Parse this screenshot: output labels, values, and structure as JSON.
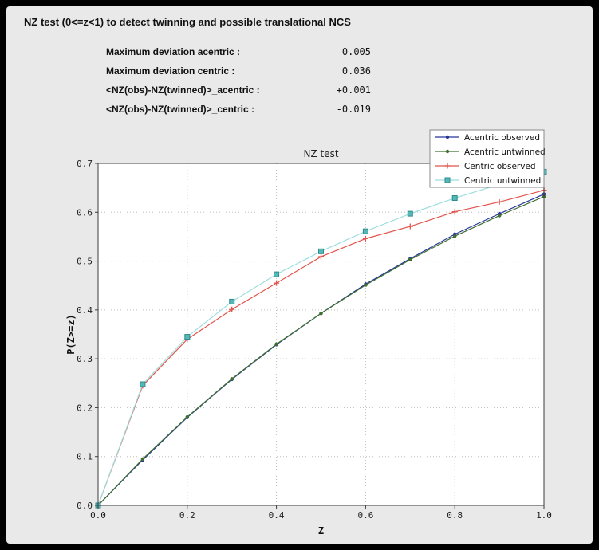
{
  "window": {
    "title": "NZ test (0<=z<1) to detect twinning and possible translational NCS"
  },
  "stats": [
    {
      "label": "Maximum deviation acentric :",
      "value": "0.005"
    },
    {
      "label": "Maximum deviation centric :",
      "value": "0.036"
    },
    {
      "label": "<NZ(obs)-NZ(twinned)>_acentric :",
      "value": "+0.001"
    },
    {
      "label": "<NZ(obs)-NZ(twinned)>_centric :",
      "value": "-0.019"
    }
  ],
  "chart_data": {
    "type": "line",
    "title": "NZ test",
    "xlabel": "Z",
    "ylabel": "P(Z>=z)",
    "xlim": [
      0.0,
      1.0
    ],
    "ylim": [
      0.0,
      0.7
    ],
    "x_ticks": [
      "0.0",
      "0.2",
      "0.4",
      "0.6",
      "0.8",
      "1.0"
    ],
    "y_ticks": [
      "0.0",
      "0.1",
      "0.2",
      "0.3",
      "0.4",
      "0.5",
      "0.6",
      "0.7"
    ],
    "grid": true,
    "legend_position": "upper right",
    "x": [
      0.0,
      0.1,
      0.2,
      0.3,
      0.4,
      0.5,
      0.6,
      0.7,
      0.8,
      0.9,
      1.0
    ],
    "series": [
      {
        "name": "Acentric observed",
        "color": "#27359b",
        "marker": "dot",
        "values": [
          0.0,
          0.093,
          0.18,
          0.258,
          0.329,
          0.393,
          0.453,
          0.505,
          0.555,
          0.597,
          0.637
        ]
      },
      {
        "name": "Acentric untwinned",
        "color": "#3f7030",
        "marker": "dot",
        "values": [
          0.0,
          0.095,
          0.181,
          0.259,
          0.33,
          0.393,
          0.451,
          0.503,
          0.551,
          0.593,
          0.632
        ]
      },
      {
        "name": "Centric observed",
        "color": "#e2544c",
        "marker": "plus",
        "values": [
          0.0,
          0.245,
          0.34,
          0.401,
          0.455,
          0.509,
          0.546,
          0.571,
          0.601,
          0.621,
          0.645
        ]
      },
      {
        "name": "Centric untwinned",
        "color": "#9edede",
        "marker": "square",
        "marker_face": "#54b8b8",
        "marker_edge": "#2f8c8c",
        "values": [
          0.0,
          0.248,
          0.345,
          0.417,
          0.473,
          0.52,
          0.561,
          0.597,
          0.629,
          0.657,
          0.683
        ]
      }
    ]
  }
}
